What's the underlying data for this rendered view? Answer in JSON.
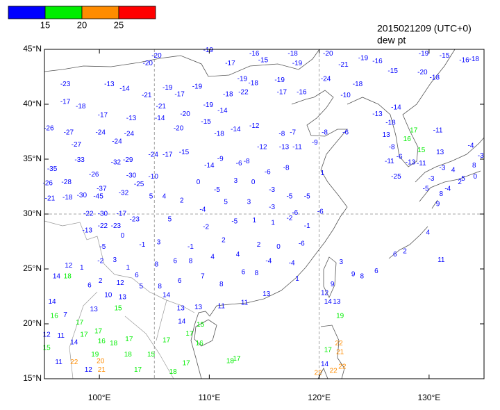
{
  "header": {
    "time": "2015021209 (UTC+0)",
    "variable": "dew pt"
  },
  "colorbar": {
    "levels": [
      15,
      20,
      25
    ],
    "colors": [
      "#0000ff",
      "#00ee00",
      "#ff8c00",
      "#ff0000"
    ]
  },
  "map": {
    "xlim": [
      95,
      135
    ],
    "ylim": [
      15,
      45
    ],
    "xticks": [
      {
        "value": 100,
        "label": "100°E"
      },
      {
        "value": 110,
        "label": "110°E"
      },
      {
        "value": 120,
        "label": "120°E"
      },
      {
        "value": 130,
        "label": "130°E"
      }
    ],
    "yticks": [
      {
        "value": 15,
        "label": "15°N"
      },
      {
        "value": 20,
        "label": "20°N"
      },
      {
        "value": 25,
        "label": "25°N"
      },
      {
        "value": 30,
        "label": "30°N"
      },
      {
        "value": 35,
        "label": "35°N"
      },
      {
        "value": 40,
        "label": "40°N"
      },
      {
        "value": 45,
        "label": "45°N"
      }
    ],
    "grid_lon": [
      105,
      120
    ],
    "grid_lat": [
      30
    ],
    "stations": {
      "lon": [
        96.9,
        96.9,
        98.3,
        95.4,
        97.2,
        97.9,
        100.1,
        100.3,
        100.9,
        102.3,
        101.6,
        102.7,
        102.9,
        104.4,
        105.2,
        104.3,
        105.6,
        106.2,
        107.3,
        105.5,
        107.2,
        107.8,
        108.9,
        109.9,
        109.9,
        109.7,
        111.2,
        113.0,
        114.0,
        111.7,
        113.1,
        111.9,
        114.1,
        114.9,
        117.6,
        116.4,
        116.6,
        118.4,
        118.0,
        120.8,
        122.2,
        124.0,
        125.3,
        126.7,
        129.5,
        131.4,
        133.2,
        134.1,
        129.4,
        130.5,
        123.5,
        122.4,
        120.6,
        125.3,
        127.0,
        110.9,
        112.4,
        114.1,
        116.6,
        117.6,
        114.8,
        116.8,
        118.0,
        119.6,
        120.5,
        122.4,
        107.7,
        106.2,
        104.9,
        102.6,
        101.5,
        98.2,
        95.7,
        95.3,
        97.0,
        95.5,
        97.1,
        99.5,
        100.2,
        98.4,
        99.9,
        102.2,
        102.9,
        103.6,
        104.9,
        99.0,
        100.3,
        102.0,
        103.2,
        98.9,
        100.3,
        101.5,
        110.0,
        111.0,
        112.7,
        113.4,
        115.3,
        117.0,
        120.3,
        109.0,
        110.7,
        112.4,
        114.0,
        115.7,
        117.3,
        118.9,
        104.7,
        105.9,
        107.5,
        109.4,
        111.5,
        113.6,
        115.7,
        117.8,
        120.1,
        106.4,
        109.7,
        112.3,
        114.1,
        115.8,
        117.3,
        118.9,
        102.1,
        100.3,
        103.9,
        105.4,
        108.3,
        111.3,
        114.5,
        116.3,
        118.4,
        97.2,
        98.4,
        100.1,
        101.4,
        102.6,
        103.4,
        105.2,
        106.9,
        108.3,
        110.3,
        112.6,
        115.4,
        117.5,
        96.1,
        97.1,
        99.1,
        100.1,
        101.9,
        103.8,
        105.5,
        107.3,
        109.4,
        111.1,
        113.1,
        114.3,
        118.0,
        95.7,
        95.9,
        96.9,
        99.5,
        100.8,
        102.1,
        101.7,
        106.1,
        107.4,
        109.0,
        111.1,
        113.2,
        115.2,
        107.5,
        109.2,
        108.2,
        109.1,
        95.2,
        96.5,
        97.7,
        95.2,
        98.6,
        99.9,
        100.2,
        101.3,
        102.7,
        98.2,
        99.6,
        100.1,
        102.6,
        104.7,
        106.1,
        107.9,
        106.7,
        100.2,
        111.9,
        112.5,
        97.7,
        96.3,
        99.0,
        103.5,
        120.5,
        120.8,
        121.6,
        121.2,
        122.0,
        123.1,
        123.9,
        125.2,
        121.9,
        121.8,
        121.9,
        120.8,
        120.5,
        122.1,
        121.3,
        119.9,
        126.9,
        127.8,
        129.9,
        131.1,
        130.8,
        131.0,
        129.3,
        126.6,
        127.0,
        127.3,
        126.1,
        126.4,
        128.3,
        129.3,
        130.2,
        131.2,
        132.2,
        133.0,
        134.7,
        133.8,
        134.1,
        130.8,
        131.1,
        132.8,
        134.2,
        131.7,
        129.7,
        128.0,
        128.6,
        126.5
      ],
      "lat": [
        41.8,
        40.2,
        39.8,
        37.8,
        37.4,
        36.3,
        37.4,
        39.0,
        41.8,
        41.4,
        36.6,
        37.3,
        38.7,
        43.7,
        44.4,
        40.8,
        39.8,
        41.5,
        40.9,
        38.7,
        37.8,
        39.1,
        41.6,
        44.9,
        39.9,
        38.4,
        39.4,
        42.3,
        41.9,
        40.9,
        41.1,
        43.7,
        44.6,
        44.0,
        44.6,
        42.2,
        41.1,
        41.1,
        43.7,
        44.6,
        43.6,
        44.2,
        43.9,
        43.0,
        44.6,
        44.4,
        44.0,
        44.1,
        42.9,
        42.4,
        41.8,
        40.8,
        42.3,
        39.1,
        39.7,
        37.3,
        37.7,
        38.0,
        37.3,
        37.4,
        36.1,
        36.1,
        36.1,
        36.5,
        37.4,
        37.4,
        35.6,
        35.4,
        35.4,
        34.9,
        34.7,
        34.9,
        34.1,
        32.8,
        32.9,
        31.4,
        31.5,
        33.6,
        32.3,
        31.7,
        31.6,
        31.9,
        33.5,
        32.7,
        33.4,
        30.0,
        30.0,
        30.0,
        29.5,
        28.5,
        28.9,
        28.9,
        34.4,
        35.0,
        34.6,
        34.8,
        33.8,
        34.2,
        33.7,
        32.9,
        32.2,
        33.0,
        32.9,
        32.2,
        31.6,
        31.6,
        31.6,
        31.6,
        31.2,
        30.4,
        31.1,
        31.1,
        30.6,
        30.1,
        30.2,
        29.5,
        28.8,
        29.3,
        29.4,
        29.2,
        29.6,
        28.9,
        28.0,
        27.0,
        27.2,
        27.4,
        27.0,
        27.6,
        27.2,
        27.0,
        27.3,
        25.3,
        25.1,
        25.7,
        25.8,
        25.1,
        24.4,
        25.4,
        25.7,
        25.7,
        26.1,
        26.3,
        25.7,
        25.5,
        24.3,
        24.3,
        23.5,
        23.9,
        23.7,
        23.4,
        23.4,
        23.9,
        24.3,
        23.6,
        24.7,
        24.6,
        24.1,
        22.0,
        20.7,
        20.8,
        21.3,
        22.6,
        22.4,
        21.4,
        22.6,
        21.4,
        21.5,
        21.6,
        21.9,
        22.7,
        20.2,
        19.9,
        19.1,
        18.2,
        19.0,
        18.9,
        18.3,
        17.8,
        19.0,
        19.3,
        18.4,
        18.2,
        18.6,
        20.1,
        17.2,
        16.6,
        17.2,
        17.2,
        18.5,
        16.4,
        15.6,
        15.8,
        16.6,
        16.8,
        16.5,
        16.5,
        15.8,
        15.8,
        22.8,
        22.0,
        22.0,
        23.6,
        25.6,
        24.5,
        24.3,
        24.8,
        20.7,
        18.2,
        17.4,
        17.6,
        16.3,
        16.1,
        15.7,
        15.5,
        26.3,
        26.6,
        28.3,
        25.8,
        37.6,
        35.6,
        35.8,
        36.1,
        33.4,
        35.2,
        37.2,
        34.8,
        34.7,
        34.6,
        33.2,
        34.2,
        34.0,
        33.2,
        35.3,
        36.2,
        34.4,
        30.9,
        31.8,
        32.9,
        33.4,
        32.3,
        32.3,
        36.8,
        37.6,
        38.3
      ],
      "values": [
        -23,
        -17,
        -18,
        -26,
        -27,
        -27,
        -24,
        -17,
        -13,
        -14,
        -24,
        -24,
        -13,
        -20,
        -20,
        -21,
        -21,
        -19,
        -17,
        -14,
        -20,
        -20,
        -19,
        -19,
        -19,
        -15,
        -14,
        -19,
        -18,
        -18,
        -22,
        -17,
        -16,
        -15,
        -18,
        -19,
        -17,
        -16,
        -19,
        -20,
        -21,
        -19,
        -16,
        -15,
        -19,
        -15,
        -16,
        -18,
        -20,
        -18,
        -18,
        -10,
        -24,
        -13,
        -14,
        -18,
        -14,
        -12,
        -8,
        -7,
        -12,
        -13,
        -11,
        -9,
        -8,
        -6,
        -15,
        -17,
        -24,
        -29,
        -32,
        -33,
        -35,
        -26,
        -28,
        -21,
        -18,
        -26,
        -37,
        -30,
        -45,
        -32,
        -30,
        -25,
        -10,
        -22,
        -30,
        -17,
        -23,
        -13,
        -22,
        -23,
        -14,
        -9,
        -6,
        -8,
        -6,
        -8,
        1,
        0,
        -5,
        3,
        0,
        -3,
        -5,
        -5,
        5,
        4,
        2,
        -4,
        5,
        3,
        -3,
        -6,
        -6,
        5,
        -2,
        -5,
        1,
        1,
        -2,
        -1,
        0,
        -5,
        -1,
        3,
        -1,
        2,
        2,
        0,
        -6,
        12,
        1,
        -2,
        3,
        1,
        6,
        8,
        6,
        8,
        4,
        4,
        -4,
        -4,
        14,
        18,
        6,
        2,
        12,
        5,
        8,
        6,
        7,
        8,
        6,
        8,
        1,
        14,
        16,
        7,
        13,
        10,
        13,
        15,
        14,
        13,
        13,
        11,
        11,
        13,
        14,
        15,
        17,
        16,
        12,
        11,
        14,
        15,
        17,
        17,
        16,
        18,
        17,
        17,
        19,
        20,
        18,
        15,
        17,
        17,
        18,
        21,
        18,
        17,
        22,
        11,
        12,
        17,
        12,
        14,
        13,
        9,
        3,
        9,
        8,
        6,
        19,
        22,
        21,
        17,
        14,
        22,
        22,
        22,
        6,
        2,
        4,
        11,
        -11,
        13,
        15,
        -8,
        -25,
        -6,
        13,
        -11,
        -13,
        -11,
        -3,
        -3,
        4,
        -5,
        -3,
        -4,
        8,
        9,
        8,
        2,
        0,
        -4,
        -5,
        16,
        17,
        -18
      ]
    }
  }
}
